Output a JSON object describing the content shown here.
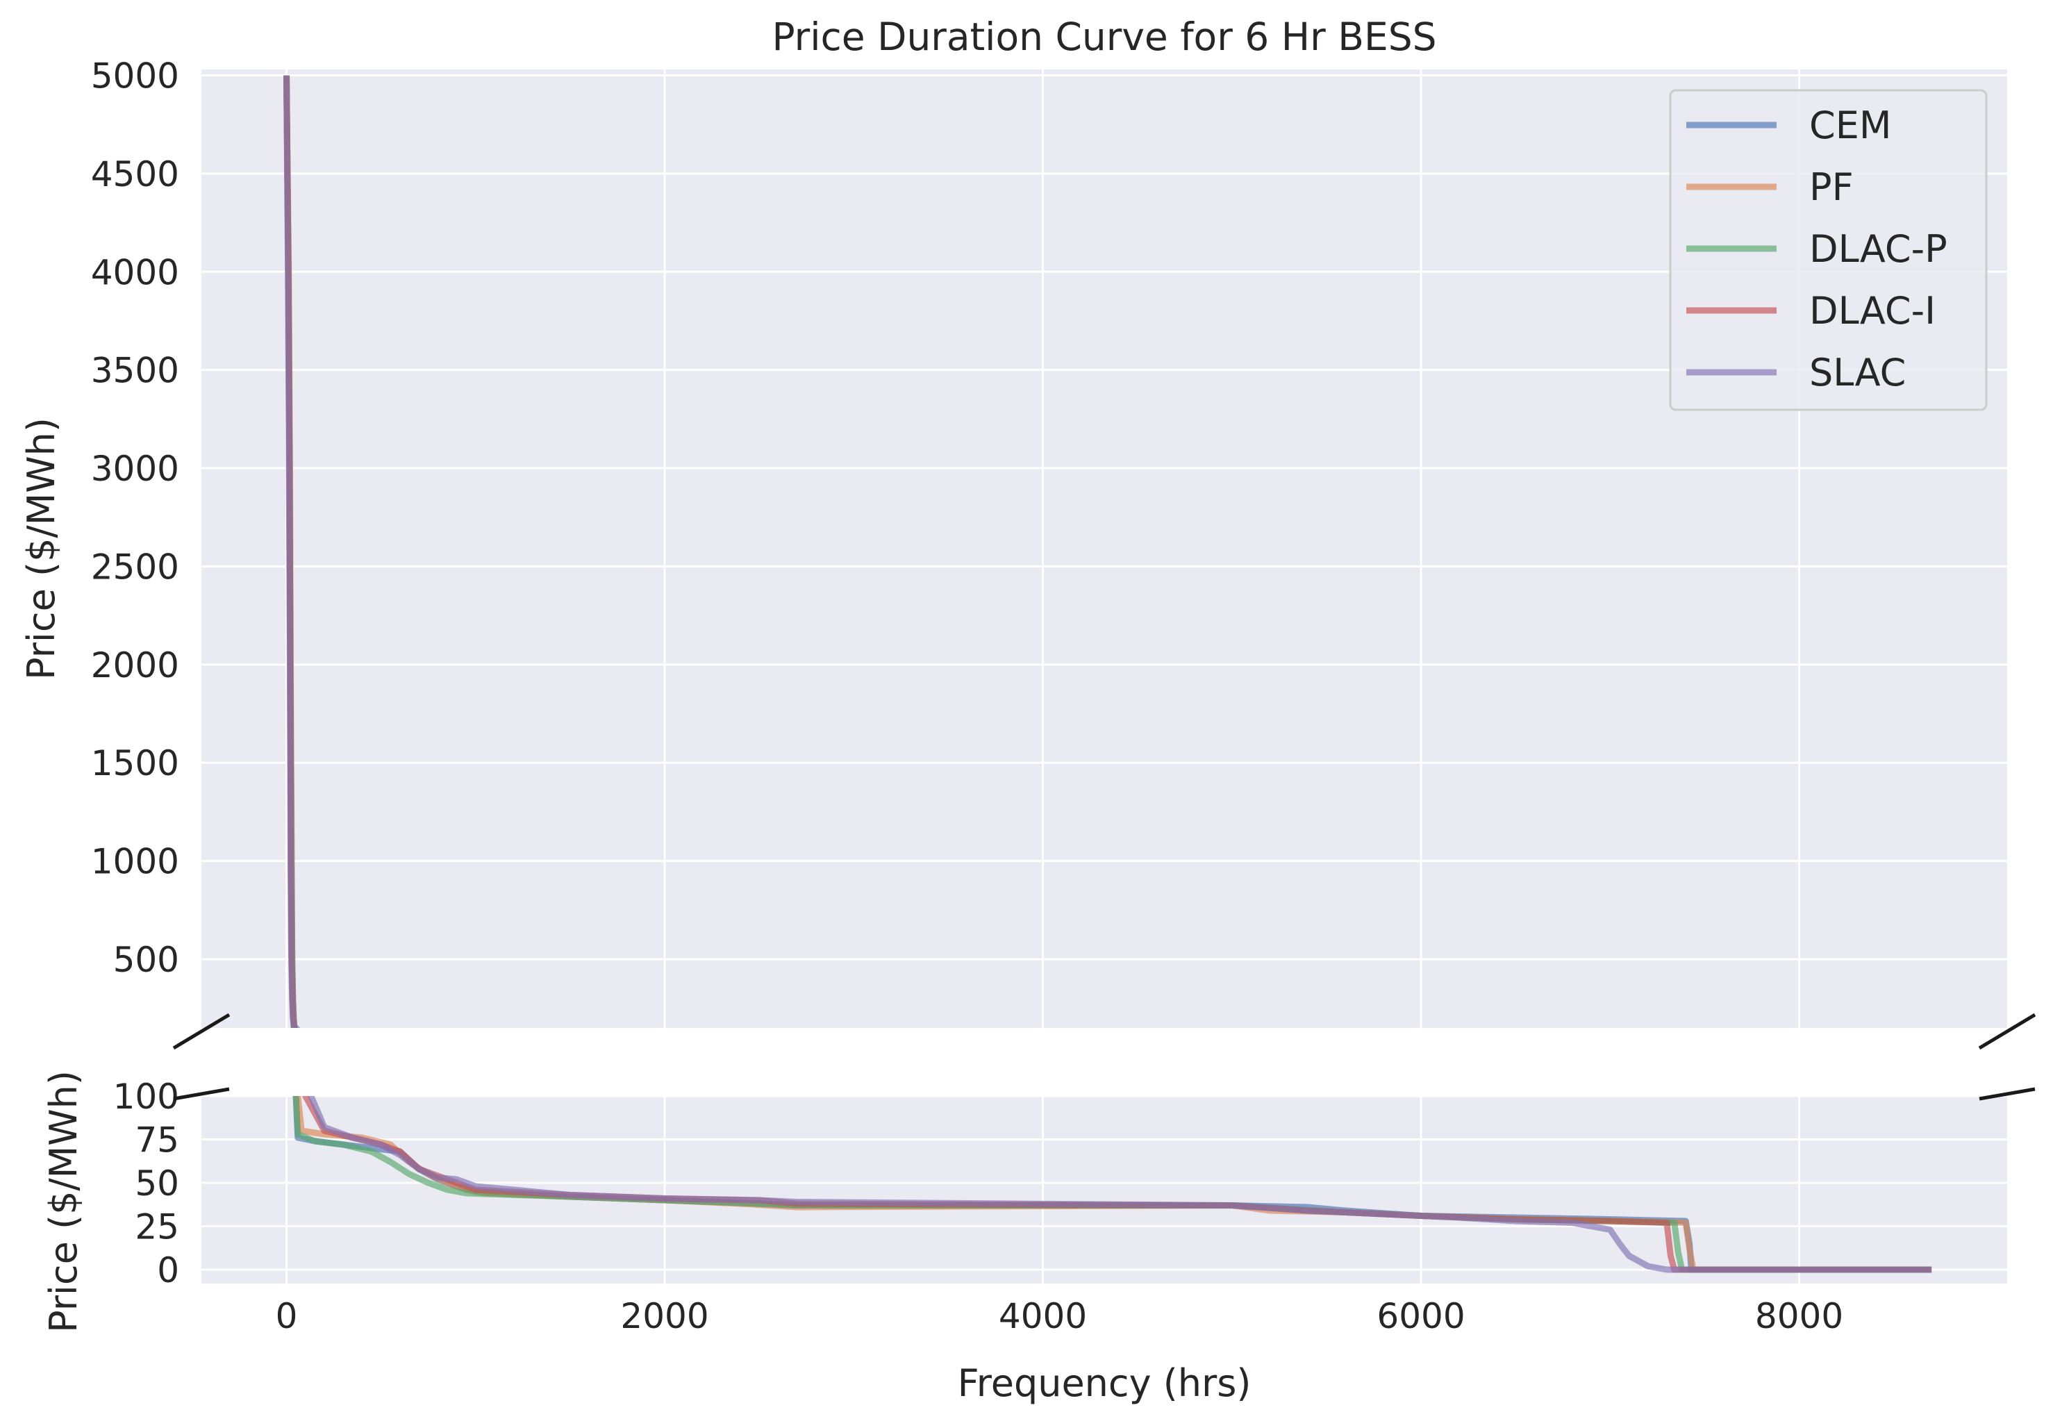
{
  "chart_data": {
    "type": "line",
    "title": "Price Duration Curve for 6 Hr BESS",
    "xlabel": "Frequency (hrs)",
    "ylabel_top": "Price ($/MWh)",
    "ylabel_bottom": "Price ($/MWh)",
    "broken_y_axis": true,
    "xlim": [
      -450,
      9100
    ],
    "ylim_top": [
      150,
      5030
    ],
    "ylim_bottom": [
      -8,
      100
    ],
    "x_ticks": [
      0,
      2000,
      4000,
      6000,
      8000
    ],
    "x_tick_labels": [
      "0",
      "2000",
      "4000",
      "6000",
      "8000"
    ],
    "y_ticks_top": [
      500,
      1000,
      1500,
      2000,
      2500,
      3000,
      3500,
      4000,
      4500,
      5000
    ],
    "y_tick_labels_top": [
      "500",
      "1000",
      "1500",
      "2000",
      "2500",
      "3000",
      "3500",
      "4000",
      "4500",
      "5000"
    ],
    "y_ticks_bottom": [
      0,
      25,
      50,
      75,
      100
    ],
    "y_tick_labels_bottom": [
      "0",
      "25",
      "50",
      "75",
      "100"
    ],
    "grid": true,
    "legend_position": "top-right",
    "series": [
      {
        "name": "CEM",
        "color": "#4c72b0",
        "points": [
          [
            0,
            5000
          ],
          [
            10,
            4000
          ],
          [
            16,
            3000
          ],
          [
            20,
            2000
          ],
          [
            24,
            1000
          ],
          [
            28,
            500
          ],
          [
            32,
            300
          ],
          [
            36,
            200
          ],
          [
            40,
            120
          ],
          [
            50,
            100
          ],
          [
            60,
            76
          ],
          [
            150,
            74
          ],
          [
            300,
            72
          ],
          [
            450,
            70
          ],
          [
            600,
            68
          ],
          [
            700,
            58
          ],
          [
            800,
            52
          ],
          [
            900,
            48
          ],
          [
            1000,
            45
          ],
          [
            1500,
            42
          ],
          [
            2000,
            40
          ],
          [
            2500,
            38
          ],
          [
            2700,
            37
          ],
          [
            5000,
            37
          ],
          [
            5400,
            36
          ],
          [
            5600,
            34
          ],
          [
            6000,
            31
          ],
          [
            6500,
            30
          ],
          [
            7000,
            29
          ],
          [
            7400,
            28
          ],
          [
            7420,
            15
          ],
          [
            7430,
            0
          ],
          [
            8700,
            0
          ]
        ]
      },
      {
        "name": "PF",
        "color": "#dd8452",
        "points": [
          [
            0,
            5000
          ],
          [
            12,
            4000
          ],
          [
            18,
            3000
          ],
          [
            22,
            2000
          ],
          [
            26,
            1000
          ],
          [
            30,
            500
          ],
          [
            34,
            300
          ],
          [
            38,
            200
          ],
          [
            45,
            120
          ],
          [
            60,
            100
          ],
          [
            80,
            80
          ],
          [
            200,
            78
          ],
          [
            400,
            76
          ],
          [
            550,
            72
          ],
          [
            650,
            62
          ],
          [
            750,
            55
          ],
          [
            850,
            50
          ],
          [
            950,
            46
          ],
          [
            1050,
            44
          ],
          [
            1500,
            42
          ],
          [
            2000,
            40
          ],
          [
            2400,
            38
          ],
          [
            2700,
            36
          ],
          [
            5000,
            37
          ],
          [
            5200,
            34
          ],
          [
            5600,
            33
          ],
          [
            6000,
            31
          ],
          [
            6500,
            29
          ],
          [
            7000,
            28
          ],
          [
            7400,
            27
          ],
          [
            7420,
            12
          ],
          [
            7440,
            0
          ],
          [
            8700,
            0
          ]
        ]
      },
      {
        "name": "DLAC-P",
        "color": "#55a868",
        "points": [
          [
            0,
            5000
          ],
          [
            10,
            4000
          ],
          [
            16,
            3000
          ],
          [
            20,
            2000
          ],
          [
            26,
            1200
          ],
          [
            30,
            500
          ],
          [
            34,
            300
          ],
          [
            38,
            200
          ],
          [
            42,
            120
          ],
          [
            50,
            100
          ],
          [
            60,
            78
          ],
          [
            150,
            74
          ],
          [
            300,
            72
          ],
          [
            450,
            68
          ],
          [
            550,
            62
          ],
          [
            650,
            55
          ],
          [
            750,
            50
          ],
          [
            850,
            46
          ],
          [
            950,
            44
          ],
          [
            1500,
            42
          ],
          [
            2000,
            40
          ],
          [
            2500,
            38
          ],
          [
            2700,
            37
          ],
          [
            5000,
            37
          ],
          [
            5300,
            35
          ],
          [
            5600,
            33
          ],
          [
            6000,
            31
          ],
          [
            6500,
            29
          ],
          [
            7000,
            28
          ],
          [
            7340,
            27
          ],
          [
            7360,
            10
          ],
          [
            7380,
            0
          ],
          [
            8700,
            0
          ]
        ]
      },
      {
        "name": "DLAC-I",
        "color": "#c44e52",
        "points": [
          [
            0,
            5000
          ],
          [
            10,
            4000
          ],
          [
            16,
            3000
          ],
          [
            20,
            2000
          ],
          [
            24,
            1000
          ],
          [
            28,
            500
          ],
          [
            32,
            300
          ],
          [
            36,
            200
          ],
          [
            42,
            150
          ],
          [
            60,
            120
          ],
          [
            100,
            100
          ],
          [
            200,
            80
          ],
          [
            350,
            76
          ],
          [
            500,
            72
          ],
          [
            600,
            68
          ],
          [
            700,
            58
          ],
          [
            800,
            54
          ],
          [
            900,
            50
          ],
          [
            1000,
            46
          ],
          [
            1500,
            43
          ],
          [
            2000,
            41
          ],
          [
            2500,
            40
          ],
          [
            2700,
            38
          ],
          [
            5000,
            37
          ],
          [
            5400,
            34
          ],
          [
            5600,
            33
          ],
          [
            6000,
            31
          ],
          [
            6500,
            29
          ],
          [
            7000,
            28
          ],
          [
            7300,
            27
          ],
          [
            7320,
            8
          ],
          [
            7340,
            0
          ],
          [
            8700,
            0
          ]
        ]
      },
      {
        "name": "SLAC",
        "color": "#8172b3",
        "points": [
          [
            0,
            5000
          ],
          [
            8,
            4000
          ],
          [
            12,
            3300
          ],
          [
            18,
            2000
          ],
          [
            22,
            1000
          ],
          [
            26,
            500
          ],
          [
            30,
            300
          ],
          [
            34,
            200
          ],
          [
            40,
            160
          ],
          [
            60,
            140
          ],
          [
            100,
            110
          ],
          [
            130,
            100
          ],
          [
            200,
            82
          ],
          [
            350,
            76
          ],
          [
            500,
            72
          ],
          [
            600,
            66
          ],
          [
            700,
            58
          ],
          [
            800,
            53
          ],
          [
            900,
            52
          ],
          [
            1000,
            48
          ],
          [
            1500,
            43
          ],
          [
            2000,
            41
          ],
          [
            2500,
            40
          ],
          [
            2700,
            39
          ],
          [
            5000,
            37
          ],
          [
            5400,
            34
          ],
          [
            5800,
            32
          ],
          [
            6200,
            30
          ],
          [
            6500,
            28
          ],
          [
            6800,
            27
          ],
          [
            7000,
            23
          ],
          [
            7050,
            15
          ],
          [
            7100,
            8
          ],
          [
            7200,
            2
          ],
          [
            7300,
            0
          ],
          [
            8700,
            0
          ]
        ]
      }
    ]
  }
}
